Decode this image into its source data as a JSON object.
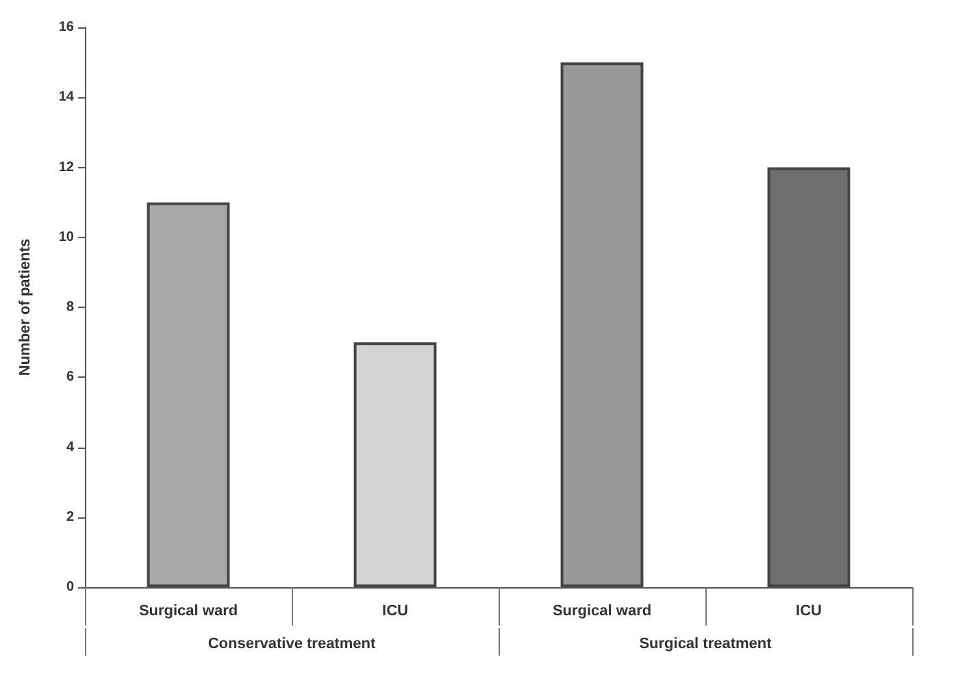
{
  "chart_data": {
    "type": "bar",
    "ylabel": "Number of patients",
    "categories": [
      "Surgical ward",
      "ICU",
      "Surgical ward",
      "ICU"
    ],
    "values": [
      11,
      7,
      15,
      12
    ],
    "colors": [
      "#a8a8a8",
      "#d4d4d4",
      "#9a9a9a",
      "#6e6e6e"
    ],
    "ylim": [
      0,
      16
    ],
    "yticks": [
      0,
      2,
      4,
      6,
      8,
      10,
      12,
      14,
      16
    ],
    "annotations": [
      "Conservative treatment",
      "Surgical treatment"
    ],
    "grid": false
  }
}
